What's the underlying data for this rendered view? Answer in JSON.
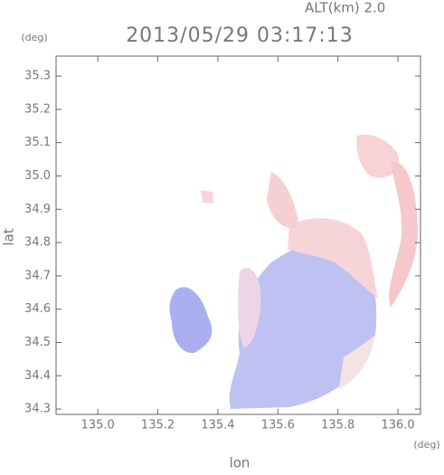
{
  "chart_data": {
    "type": "map",
    "title": "2013/05/29 03:17:13",
    "subtitle": "ALT(km) 2.0",
    "xlabel": "lon",
    "ylabel": "lat",
    "xunit": "(deg)",
    "yunit": "(deg)",
    "xlim": [
      134.861,
      136.075
    ],
    "ylim": [
      34.284,
      35.36
    ],
    "xticks": [
      {
        "value": 135.0,
        "label": "135.0"
      },
      135.2,
      135.4,
      135.6,
      135.8,
      {
        "value": 136.0,
        "label": "136.0"
      }
    ],
    "yticks": [
      34.3,
      34.4,
      34.5,
      34.6,
      34.7,
      34.8,
      34.9,
      {
        "value": 35.0,
        "label": "35.0"
      },
      35.1,
      35.2,
      35.3
    ]
  }
}
